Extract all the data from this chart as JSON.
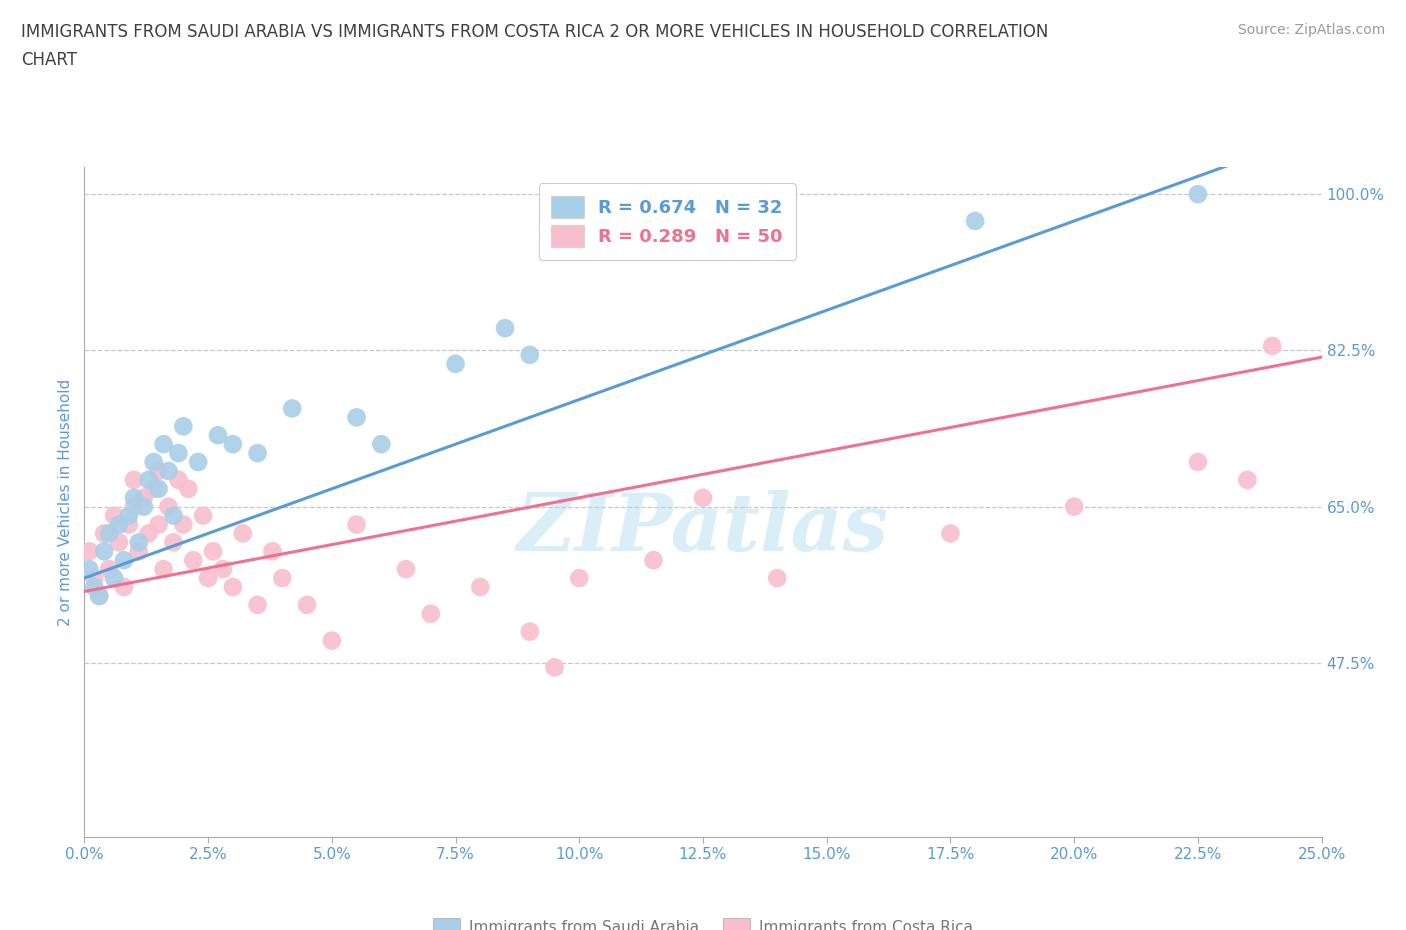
{
  "title_line1": "IMMIGRANTS FROM SAUDI ARABIA VS IMMIGRANTS FROM COSTA RICA 2 OR MORE VEHICLES IN HOUSEHOLD CORRELATION",
  "title_line2": "CHART",
  "source": "Source: ZipAtlas.com",
  "ylabel": "2 or more Vehicles in Household",
  "xlim": [
    0.0,
    25.0
  ],
  "ylim": [
    28.0,
    103.0
  ],
  "xticks": [
    0.0,
    2.5,
    5.0,
    7.5,
    10.0,
    12.5,
    15.0,
    17.5,
    20.0,
    22.5,
    25.0
  ],
  "yticks_right": [
    47.5,
    65.0,
    82.5,
    100.0
  ],
  "saudi_color": "#a8cfe8",
  "costa_rica_color": "#f9bece",
  "saudi_line_color": "#5b9bd5",
  "costa_rica_line_color": "#f07090",
  "R_saudi": 0.674,
  "N_saudi": 32,
  "R_costa": 0.289,
  "N_costa": 50,
  "legend_label_saudi": "Immigrants from Saudi Arabia",
  "legend_label_costa": "Immigrants from Costa Rica",
  "watermark": "ZIPatlas",
  "watermark_color": "#daeef8",
  "title_color": "#404040",
  "tick_color": "#5b9bd5",
  "grid_color": "#c8c8c8",
  "saudi_x": [
    0.1,
    0.2,
    0.3,
    0.4,
    0.5,
    0.6,
    0.7,
    0.8,
    0.9,
    1.0,
    1.1,
    1.2,
    1.3,
    1.4,
    1.5,
    1.6,
    1.7,
    1.8,
    1.9,
    2.0,
    2.3,
    2.7,
    3.0,
    3.5,
    4.2,
    5.5,
    6.0,
    7.5,
    8.5,
    9.0,
    18.0,
    22.5
  ],
  "saudi_y": [
    58,
    56,
    55,
    60,
    62,
    57,
    63,
    59,
    64,
    66,
    61,
    65,
    68,
    70,
    67,
    72,
    69,
    64,
    71,
    74,
    70,
    73,
    72,
    71,
    76,
    75,
    72,
    81,
    85,
    82,
    97,
    100
  ],
  "costa_x": [
    0.1,
    0.2,
    0.3,
    0.4,
    0.5,
    0.6,
    0.7,
    0.8,
    0.9,
    1.0,
    1.0,
    1.1,
    1.2,
    1.3,
    1.4,
    1.5,
    1.5,
    1.6,
    1.7,
    1.8,
    1.9,
    2.0,
    2.1,
    2.2,
    2.4,
    2.5,
    2.6,
    2.8,
    3.0,
    3.2,
    3.5,
    3.8,
    4.0,
    4.5,
    5.0,
    5.5,
    6.5,
    7.0,
    8.0,
    9.0,
    9.5,
    10.0,
    11.5,
    12.5,
    14.0,
    17.5,
    20.0,
    22.5,
    23.5,
    24.0
  ],
  "costa_y": [
    60,
    57,
    55,
    62,
    58,
    64,
    61,
    56,
    63,
    68,
    65,
    60,
    66,
    62,
    67,
    69,
    63,
    58,
    65,
    61,
    68,
    63,
    67,
    59,
    64,
    57,
    60,
    58,
    56,
    62,
    54,
    60,
    57,
    54,
    50,
    63,
    58,
    53,
    56,
    51,
    47,
    57,
    59,
    66,
    57,
    62,
    65,
    70,
    68,
    83
  ]
}
